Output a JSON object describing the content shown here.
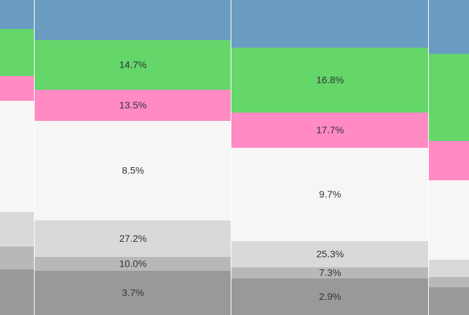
{
  "chart_data": {
    "type": "bar",
    "stacked": true,
    "normalized": true,
    "grid": false,
    "categories": [
      "",
      "",
      "",
      ""
    ],
    "series": [
      {
        "color": "#6b9dc2",
        "values": [
          null,
          14.7,
          16.8,
          null
        ]
      },
      {
        "color": "#64d66a",
        "values": [
          null,
          13.5,
          17.7,
          null
        ]
      },
      {
        "color": "#ff8ac4",
        "values": [
          null,
          8.5,
          9.7,
          null
        ]
      },
      {
        "color": "#f6f6f6",
        "values": [
          null,
          27.2,
          25.3,
          null
        ]
      },
      {
        "color": "#d9d9d9",
        "values": [
          null,
          10.0,
          7.3,
          null
        ]
      },
      {
        "color": "#b8b8b8",
        "values": [
          null,
          3.7,
          2.9,
          null
        ]
      },
      {
        "color": "#999999",
        "values": [
          null,
          null,
          null,
          null
        ]
      }
    ],
    "labels": [
      [
        "",
        "",
        "",
        ""
      ],
      [
        "",
        "14.7%",
        "16.8%",
        ""
      ],
      [
        "",
        "13.5%",
        "17.7%",
        ""
      ],
      [
        "",
        "8.5%",
        "9.7%",
        ""
      ],
      [
        "",
        "27.2%",
        "25.3%",
        ""
      ],
      [
        "",
        "10.0%",
        "7.3%",
        ""
      ],
      [
        "",
        "3.7%",
        "2.9%",
        ""
      ]
    ]
  }
}
